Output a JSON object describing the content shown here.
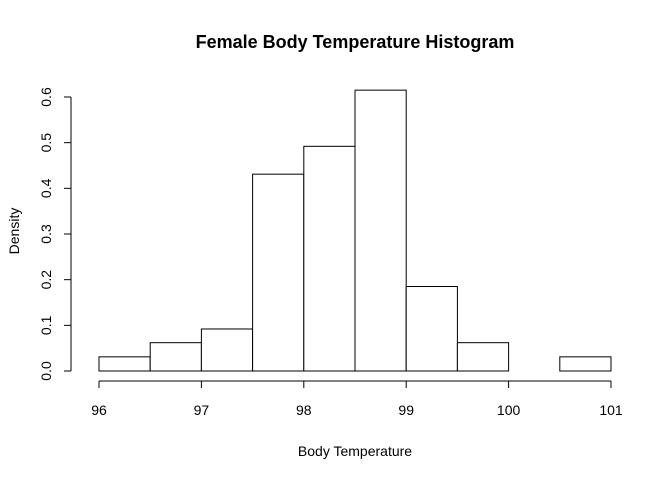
{
  "chart_data": {
    "type": "bar",
    "title": "Female Body Temperature Histogram",
    "xlabel": "Body Temperature",
    "ylabel": "Density",
    "bins": [
      {
        "start": 96.0,
        "end": 96.5,
        "density": 0.031
      },
      {
        "start": 96.5,
        "end": 97.0,
        "density": 0.062
      },
      {
        "start": 97.0,
        "end": 97.5,
        "density": 0.092
      },
      {
        "start": 97.5,
        "end": 98.0,
        "density": 0.431
      },
      {
        "start": 98.0,
        "end": 98.5,
        "density": 0.492
      },
      {
        "start": 98.5,
        "end": 99.0,
        "density": 0.615
      },
      {
        "start": 99.0,
        "end": 99.5,
        "density": 0.185
      },
      {
        "start": 99.5,
        "end": 100.0,
        "density": 0.062
      },
      {
        "start": 100.0,
        "end": 100.5,
        "density": 0.0
      },
      {
        "start": 100.5,
        "end": 101.0,
        "density": 0.031
      }
    ],
    "xlim": [
      96,
      101
    ],
    "ylim": [
      0,
      0.6
    ],
    "x_ticks": [
      96,
      97,
      98,
      99,
      100,
      101
    ],
    "x_tick_labels": [
      "96",
      "97",
      "98",
      "99",
      "100",
      "101"
    ],
    "y_ticks": [
      0.0,
      0.1,
      0.2,
      0.3,
      0.4,
      0.5,
      0.6
    ],
    "y_tick_labels": [
      "0.0",
      "0.1",
      "0.2",
      "0.3",
      "0.4",
      "0.5",
      "0.6"
    ],
    "grid": false,
    "legend": "none",
    "bar_fill": "#ffffff",
    "bar_stroke": "#000000"
  }
}
